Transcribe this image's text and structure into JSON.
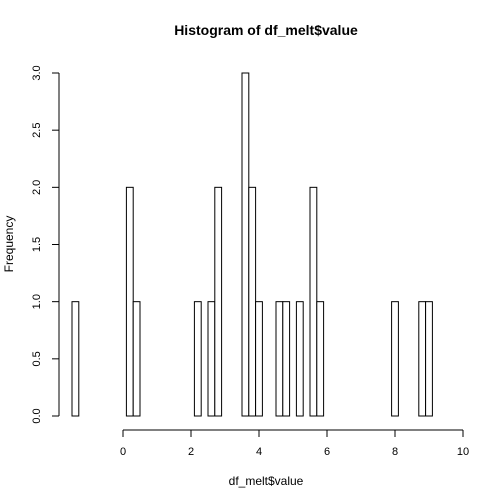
{
  "chart_data": {
    "type": "bar",
    "title": "Histogram of df_melt$value",
    "xlabel": "df_melt$value",
    "ylabel": "Frequency",
    "xlim": [
      -1.5,
      9.8
    ],
    "ylim": [
      0,
      3.0
    ],
    "x_ticks": [
      "0",
      "2",
      "4",
      "6",
      "8",
      "10"
    ],
    "y_ticks": [
      "0.0",
      "0.5",
      "1.0",
      "1.5",
      "2.0",
      "2.5",
      "3.0"
    ],
    "bin_width": 0.2,
    "bin_start": -1.5,
    "counts": [
      1,
      0,
      0,
      0,
      0,
      0,
      0,
      0,
      2,
      1,
      0,
      0,
      0,
      0,
      0,
      0,
      0,
      0,
      1,
      0,
      1,
      2,
      0,
      0,
      0,
      3,
      2,
      1,
      0,
      0,
      1,
      1,
      0,
      1,
      0,
      2,
      1,
      0,
      0,
      0,
      0,
      0,
      0,
      0,
      0,
      0,
      0,
      1,
      0,
      0,
      0,
      1,
      1
    ],
    "grid": false,
    "legend": "none"
  }
}
